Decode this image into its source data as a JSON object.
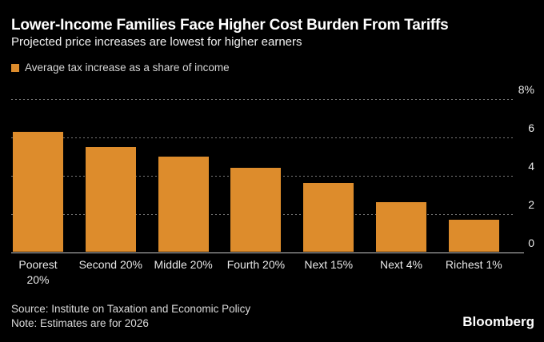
{
  "header": {
    "title": "Lower-Income Families Face Higher Cost Burden From Tariffs",
    "subtitle": "Projected price increases are lowest for higher earners"
  },
  "legend": {
    "label": "Average tax increase as a share of income",
    "swatch_color": "#DD8C2C"
  },
  "chart_data": {
    "type": "bar",
    "title": "Lower-Income Families Face Higher Cost Burden From Tariffs",
    "subtitle": "Projected price increases are lowest for higher earners",
    "series_name": "Average tax increase as a share of income",
    "categories": [
      "Poorest 20%",
      "Second 20%",
      "Middle 20%",
      "Fourth 20%",
      "Next 15%",
      "Next 4%",
      "Richest 1%"
    ],
    "values": [
      6.3,
      5.5,
      5.0,
      4.4,
      3.6,
      2.6,
      1.7
    ],
    "unit": "percent of income",
    "xlabel": "",
    "ylabel": "",
    "ylim": [
      0,
      8
    ],
    "yticks": [
      {
        "value": 8,
        "label": "8%"
      },
      {
        "value": 6,
        "label": "6"
      },
      {
        "value": 4,
        "label": "4"
      },
      {
        "value": 2,
        "label": "2"
      },
      {
        "value": 0,
        "label": "0"
      }
    ],
    "x_tick_lines": [
      [
        "Poorest",
        "20%"
      ],
      [
        "Second 20%"
      ],
      [
        "Middle 20%"
      ],
      [
        "Fourth 20%"
      ],
      [
        "Next 15%"
      ],
      [
        "Next 4%"
      ],
      [
        "Richest 1%"
      ]
    ],
    "bar_color": "#DD8C2C",
    "background": "#000000",
    "grid": "horizontal-dotted",
    "axis_side": "right",
    "legend_position": "top-left"
  },
  "footer": {
    "source": "Source: Institute on Taxation and Economic Policy",
    "note": "Note: Estimates are for 2026",
    "brand": "Bloomberg"
  }
}
